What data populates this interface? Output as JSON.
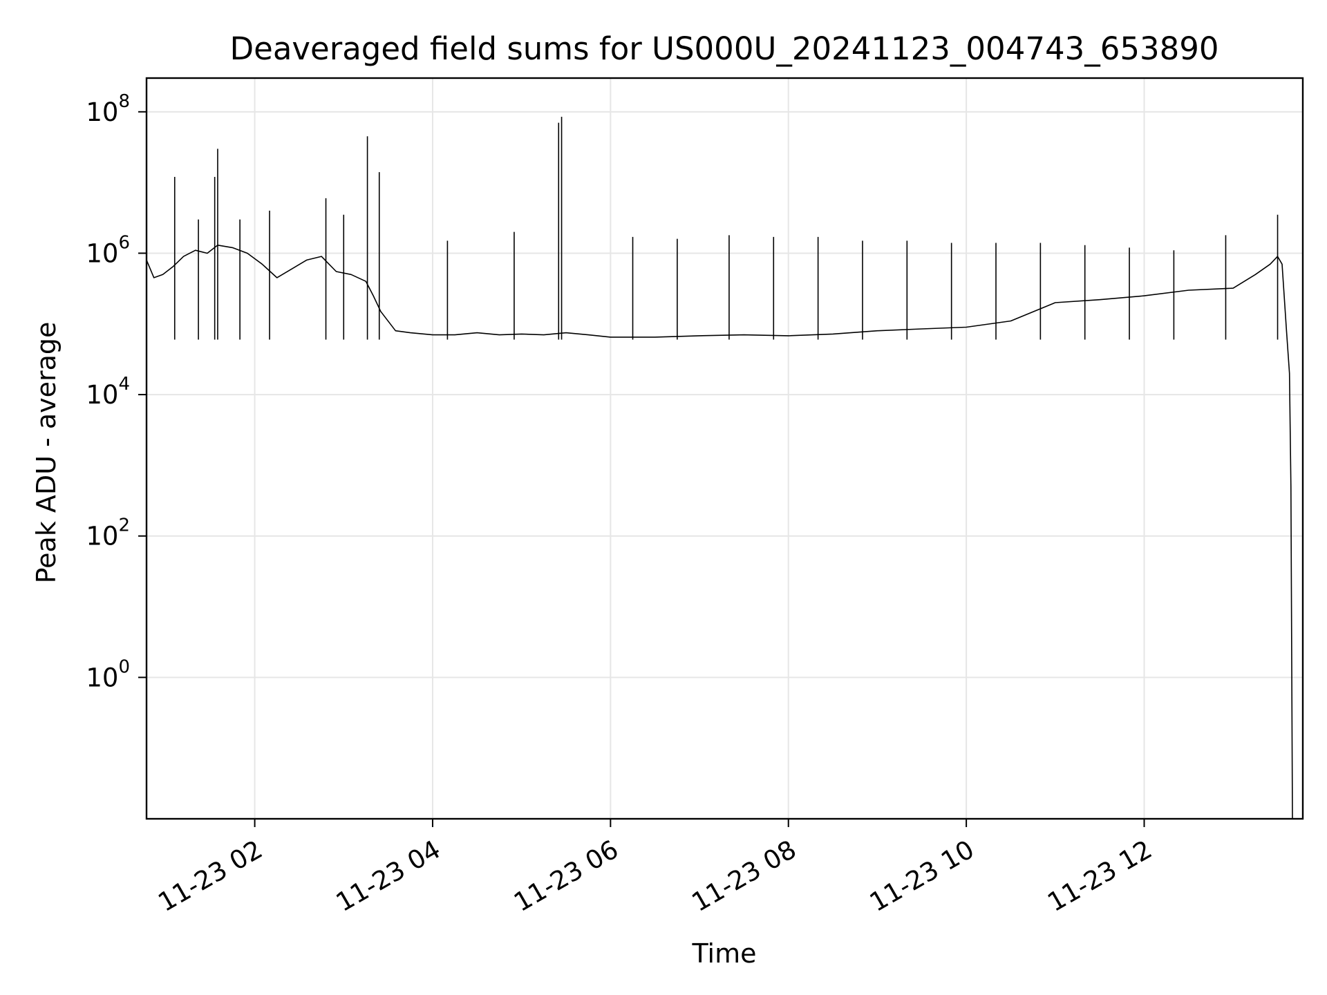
{
  "chart_data": {
    "type": "line",
    "title": "Deaveraged field sums for US000U_20241123_004743_653890",
    "xlabel": "Time",
    "ylabel": "Peak ADU - average",
    "y_scale": "log",
    "ylim": [
      0.01,
      300000000
    ],
    "xlim": [
      "2024-11-23 00:47",
      "2024-11-23 13:47"
    ],
    "grid": true,
    "x_ticks": [
      {
        "t": "2024-11-23 02:00",
        "label": "11-23 02"
      },
      {
        "t": "2024-11-23 04:00",
        "label": "11-23 04"
      },
      {
        "t": "2024-11-23 06:00",
        "label": "11-23 06"
      },
      {
        "t": "2024-11-23 08:00",
        "label": "11-23 08"
      },
      {
        "t": "2024-11-23 10:00",
        "label": "11-23 10"
      },
      {
        "t": "2024-11-23 12:00",
        "label": "11-23 12"
      }
    ],
    "y_ticks": [
      {
        "v": 1,
        "base": "10",
        "exp": "0"
      },
      {
        "v": 100,
        "base": "10",
        "exp": "2"
      },
      {
        "v": 10000,
        "base": "10",
        "exp": "4"
      },
      {
        "v": 1000000,
        "base": "10",
        "exp": "6"
      },
      {
        "v": 100000000,
        "base": "10",
        "exp": "8"
      }
    ],
    "line_color": "#000000",
    "series": [
      {
        "x": [
          "2024-11-23 00:47",
          "2024-11-23 00:52",
          "2024-11-23 00:58",
          "2024-11-23 01:05",
          "2024-11-23 01:12",
          "2024-11-23 01:20",
          "2024-11-23 01:28",
          "2024-11-23 01:35",
          "2024-11-23 01:45",
          "2024-11-23 01:55",
          "2024-11-23 02:05",
          "2024-11-23 02:15",
          "2024-11-23 02:25",
          "2024-11-23 02:35",
          "2024-11-23 02:45",
          "2024-11-23 02:55",
          "2024-11-23 03:05",
          "2024-11-23 03:15",
          "2024-11-23 03:20",
          "2024-11-23 03:25",
          "2024-11-23 03:35",
          "2024-11-23 03:45",
          "2024-11-23 04:00",
          "2024-11-23 04:15",
          "2024-11-23 04:30",
          "2024-11-23 04:45",
          "2024-11-23 05:00",
          "2024-11-23 05:15",
          "2024-11-23 05:30",
          "2024-11-23 05:45",
          "2024-11-23 06:00",
          "2024-11-23 06:30",
          "2024-11-23 07:00",
          "2024-11-23 07:30",
          "2024-11-23 08:00",
          "2024-11-23 08:30",
          "2024-11-23 09:00",
          "2024-11-23 09:30",
          "2024-11-23 10:00",
          "2024-11-23 10:30",
          "2024-11-23 11:00",
          "2024-11-23 11:30",
          "2024-11-23 12:00",
          "2024-11-23 12:30",
          "2024-11-23 13:00",
          "2024-11-23 13:15",
          "2024-11-23 13:25",
          "2024-11-23 13:30",
          "2024-11-23 13:33",
          "2024-11-23 13:36",
          "2024-11-23 13:38",
          "2024-11-23 13:39",
          "2024-11-23 13:40"
        ],
        "y": [
          800000,
          450000,
          500000,
          650000,
          900000,
          1100000,
          1000000,
          1300000,
          1200000,
          1000000,
          700000,
          450000,
          600000,
          800000,
          900000,
          550000,
          500000,
          400000,
          250000,
          150000,
          80000,
          75000,
          70000,
          70000,
          75000,
          70000,
          72000,
          70000,
          75000,
          70000,
          65000,
          65000,
          68000,
          70000,
          68000,
          72000,
          80000,
          85000,
          90000,
          110000,
          200000,
          220000,
          250000,
          300000,
          320000,
          500000,
          700000,
          900000,
          700000,
          80000,
          20000,
          500,
          0.01
        ]
      }
    ],
    "spikes": [
      {
        "x": "2024-11-23 01:06",
        "y": 12000000
      },
      {
        "x": "2024-11-23 01:22",
        "y": 3000000
      },
      {
        "x": "2024-11-23 01:33",
        "y": 12000000
      },
      {
        "x": "2024-11-23 01:35",
        "y": 30000000
      },
      {
        "x": "2024-11-23 01:50",
        "y": 3000000
      },
      {
        "x": "2024-11-23 02:10",
        "y": 4000000
      },
      {
        "x": "2024-11-23 02:48",
        "y": 6000000
      },
      {
        "x": "2024-11-23 03:00",
        "y": 3500000
      },
      {
        "x": "2024-11-23 03:16",
        "y": 45000000
      },
      {
        "x": "2024-11-23 03:24",
        "y": 14000000
      },
      {
        "x": "2024-11-23 04:10",
        "y": 1500000
      },
      {
        "x": "2024-11-23 04:55",
        "y": 2000000
      },
      {
        "x": "2024-11-23 05:25",
        "y": 70000000
      },
      {
        "x": "2024-11-23 05:27",
        "y": 85000000
      },
      {
        "x": "2024-11-23 06:15",
        "y": 1700000
      },
      {
        "x": "2024-11-23 06:45",
        "y": 1600000
      },
      {
        "x": "2024-11-23 07:20",
        "y": 1800000
      },
      {
        "x": "2024-11-23 07:50",
        "y": 1700000
      },
      {
        "x": "2024-11-23 08:20",
        "y": 1700000
      },
      {
        "x": "2024-11-23 08:50",
        "y": 1500000
      },
      {
        "x": "2024-11-23 09:20",
        "y": 1500000
      },
      {
        "x": "2024-11-23 09:50",
        "y": 1400000
      },
      {
        "x": "2024-11-23 10:20",
        "y": 1400000
      },
      {
        "x": "2024-11-23 10:50",
        "y": 1400000
      },
      {
        "x": "2024-11-23 11:20",
        "y": 1300000
      },
      {
        "x": "2024-11-23 11:50",
        "y": 1200000
      },
      {
        "x": "2024-11-23 12:20",
        "y": 1100000
      },
      {
        "x": "2024-11-23 12:55",
        "y": 1800000
      },
      {
        "x": "2024-11-23 13:30",
        "y": 3500000
      }
    ]
  }
}
